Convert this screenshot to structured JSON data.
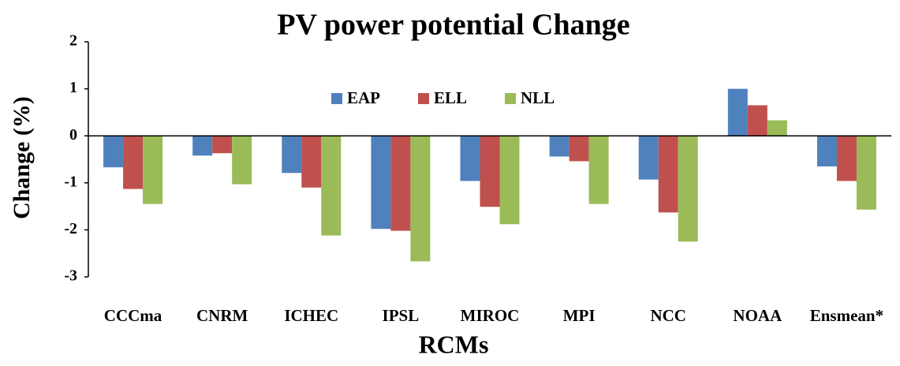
{
  "chart_data": {
    "type": "bar",
    "title": "PV power potential Change",
    "x_label": "RCMs",
    "y_label": "Change (%)",
    "categories": [
      "CCCma",
      "CNRM",
      "ICHEC",
      "IPSL",
      "MIROC",
      "MPI",
      "NCC",
      "NOAA",
      "Ensmean*"
    ],
    "series": [
      {
        "name": "EAP",
        "color": "#4f81bd",
        "values": [
          -0.67,
          -0.42,
          -0.79,
          -1.98,
          -0.96,
          -0.44,
          -0.93,
          1.0,
          -0.65
        ]
      },
      {
        "name": "ELL",
        "color": "#c0504d",
        "values": [
          -1.13,
          -0.37,
          -1.1,
          -2.02,
          -1.51,
          -0.54,
          -1.63,
          0.65,
          -0.96
        ]
      },
      {
        "name": "NLL",
        "color": "#9bbb59",
        "values": [
          -1.45,
          -1.03,
          -2.12,
          -2.67,
          -1.88,
          -1.45,
          -2.25,
          0.33,
          -1.57
        ]
      }
    ],
    "ylim": [
      -3,
      2
    ],
    "yticks": [
      -3,
      -2,
      -1,
      0,
      1,
      2
    ],
    "grid": false,
    "legend": "top"
  }
}
